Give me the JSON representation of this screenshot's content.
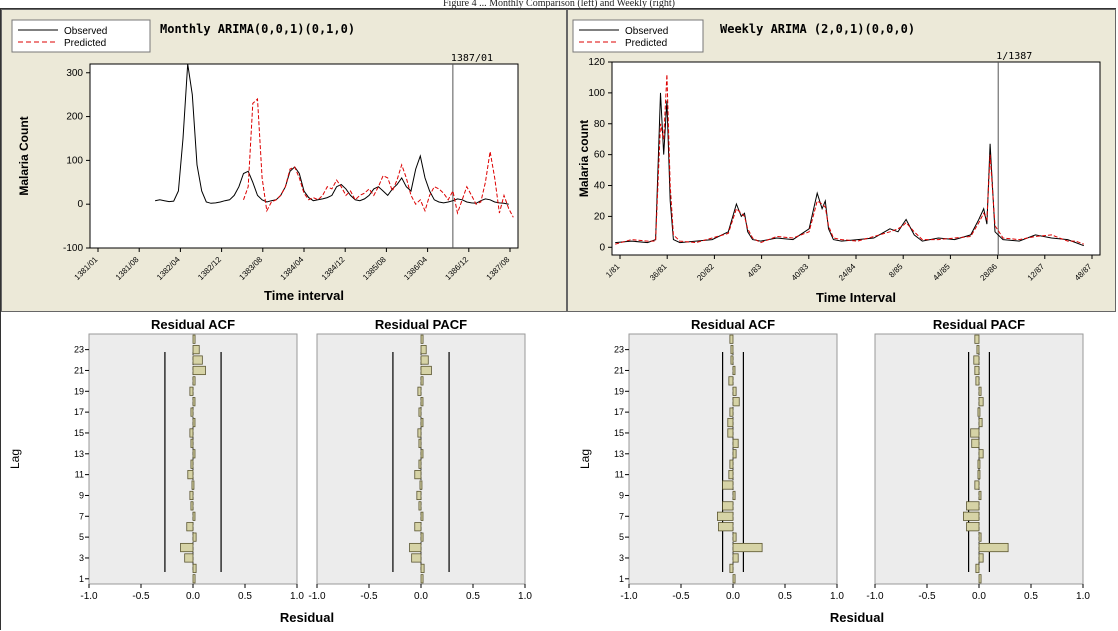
{
  "caption": "Figure 4 ... Monthly Comparison (left) and Weekly (right)",
  "chart_data": [
    {
      "type": "line",
      "title": "Monthly ARIMA(0,0,1)(0,1,0)",
      "xlabel": "Time interval",
      "ylabel": "Malaria Count",
      "ylim": [
        -100,
        320
      ],
      "yticks": [
        -100,
        0,
        100,
        200,
        300
      ],
      "xticks": [
        "1381/01",
        "1381/08",
        "1382/04",
        "1382/12",
        "1383/08",
        "1384/04",
        "1384/12",
        "1385/08",
        "1386/04",
        "1386/12",
        "1387/08"
      ],
      "vline_label": "1387/01",
      "legend": {
        "placement": "top-left",
        "entries": [
          "Observed",
          "Predicted"
        ]
      },
      "series": [
        {
          "name": "Observed",
          "color": "#000000",
          "x": [
            14,
            15,
            16,
            17,
            18,
            19,
            20,
            21,
            22,
            23,
            24,
            25,
            26,
            27,
            28,
            29,
            30,
            31,
            32,
            33,
            34,
            35,
            36,
            37,
            38,
            39,
            40,
            41,
            42,
            43,
            44,
            45,
            46,
            47,
            48,
            49,
            50,
            51,
            52,
            53,
            54,
            55,
            56,
            57,
            58,
            59,
            60,
            61,
            62,
            63,
            64,
            65,
            66,
            67,
            68,
            69,
            70,
            71,
            72,
            73,
            74,
            75,
            76,
            77,
            78,
            79,
            80,
            81,
            82,
            83,
            84,
            85,
            86,
            87,
            88,
            89,
            90
          ],
          "values": [
            8,
            10,
            8,
            6,
            7,
            30,
            150,
            320,
            250,
            90,
            30,
            5,
            2,
            3,
            5,
            8,
            10,
            20,
            40,
            70,
            75,
            50,
            20,
            10,
            5,
            8,
            10,
            20,
            40,
            75,
            85,
            70,
            30,
            15,
            8,
            10,
            12,
            15,
            20,
            40,
            45,
            35,
            20,
            10,
            8,
            12,
            20,
            35,
            40,
            30,
            20,
            35,
            45,
            60,
            40,
            30,
            80,
            110,
            60,
            30,
            10,
            5,
            3,
            5,
            8,
            12,
            10,
            5,
            3,
            2,
            8,
            12,
            10,
            5,
            3,
            2,
            0
          ]
        },
        {
          "name": "Predicted",
          "color": "#dd0000",
          "x": [
            33,
            34,
            35,
            36,
            37,
            38,
            39,
            40,
            41,
            42,
            43,
            44,
            45,
            46,
            47,
            48,
            49,
            50,
            51,
            52,
            53,
            54,
            55,
            56,
            57,
            58,
            59,
            60,
            61,
            62,
            63,
            64,
            65,
            66,
            67,
            68,
            69,
            70,
            71,
            72,
            73,
            74,
            75,
            76,
            77,
            78,
            79,
            80,
            81,
            82,
            83,
            84,
            85,
            86,
            87,
            88,
            89,
            90,
            91
          ],
          "values": [
            10,
            40,
            230,
            240,
            60,
            -15,
            5,
            10,
            20,
            40,
            80,
            85,
            60,
            25,
            10,
            15,
            10,
            20,
            40,
            35,
            55,
            40,
            20,
            30,
            10,
            20,
            25,
            35,
            20,
            40,
            65,
            60,
            30,
            55,
            90,
            60,
            20,
            0,
            10,
            -15,
            20,
            40,
            35,
            25,
            10,
            30,
            -20,
            10,
            40,
            20,
            0,
            5,
            50,
            120,
            60,
            -20,
            20,
            -10,
            -30
          ]
        }
      ]
    },
    {
      "type": "line",
      "title": "Weekly ARIMA (2,0,1)(0,0,0)",
      "xlabel": "Time Interval",
      "ylabel": "Malaria count",
      "ylim": [
        -5,
        120
      ],
      "yticks": [
        0,
        20,
        40,
        60,
        80,
        100,
        120
      ],
      "xticks": [
        "1/81",
        "36/81",
        "20/82",
        "4/83",
        "40/83",
        "24/84",
        "8/85",
        "44/85",
        "28/86",
        "12/87",
        "48/87"
      ],
      "vline_label": "1/1387",
      "legend": {
        "placement": "top-left",
        "entries": [
          "Observed",
          "Predicted"
        ]
      },
      "series": [
        {
          "name": "Observed",
          "color": "#000000",
          "x": [
            0,
            10,
            20,
            25,
            28,
            30,
            32,
            34,
            36,
            40,
            50,
            60,
            70,
            75,
            78,
            80,
            82,
            85,
            90,
            100,
            110,
            120,
            125,
            128,
            130,
            132,
            135,
            140,
            150,
            160,
            170,
            175,
            178,
            180,
            185,
            190,
            200,
            210,
            220,
            225,
            228,
            230,
            232,
            235,
            240,
            250,
            260,
            270,
            280,
            285,
            290
          ],
          "values": [
            3,
            4,
            3,
            5,
            100,
            60,
            95,
            30,
            5,
            3,
            4,
            5,
            10,
            28,
            20,
            22,
            10,
            5,
            4,
            6,
            5,
            12,
            35,
            25,
            30,
            12,
            5,
            4,
            5,
            6,
            12,
            10,
            15,
            18,
            8,
            4,
            6,
            5,
            8,
            18,
            25,
            15,
            67,
            10,
            5,
            4,
            8,
            6,
            5,
            3,
            1
          ]
        },
        {
          "name": "Predicted",
          "color": "#dd0000",
          "x": [
            0,
            10,
            20,
            25,
            28,
            30,
            32,
            34,
            36,
            40,
            50,
            60,
            70,
            75,
            78,
            80,
            82,
            85,
            90,
            100,
            110,
            120,
            125,
            128,
            130,
            132,
            135,
            140,
            150,
            160,
            170,
            175,
            178,
            180,
            185,
            190,
            200,
            210,
            220,
            225,
            228,
            230,
            232,
            235,
            240,
            250,
            260,
            270,
            280,
            285,
            290
          ],
          "values": [
            2,
            5,
            4,
            4,
            80,
            70,
            112,
            40,
            8,
            4,
            3,
            6,
            9,
            25,
            22,
            20,
            12,
            6,
            3,
            7,
            6,
            10,
            30,
            28,
            26,
            14,
            6,
            5,
            4,
            7,
            10,
            12,
            14,
            16,
            10,
            5,
            5,
            6,
            7,
            16,
            22,
            18,
            60,
            14,
            6,
            5,
            7,
            8,
            4,
            4,
            2
          ]
        }
      ]
    },
    {
      "type": "bar",
      "title": "Residual ACF",
      "xlabel": "Residual",
      "ylabel": "Lag",
      "xlim": [
        -1.0,
        1.0
      ],
      "xticks": [
        -1.0,
        -0.5,
        0.0,
        0.5,
        1.0
      ],
      "yticks": [
        1,
        3,
        5,
        7,
        9,
        11,
        13,
        15,
        17,
        19,
        21,
        23
      ],
      "ci": 0.27,
      "lags": [
        1,
        2,
        3,
        4,
        5,
        6,
        7,
        8,
        9,
        10,
        11,
        12,
        13,
        14,
        15,
        16,
        17,
        18,
        19,
        20,
        21,
        22,
        23,
        24
      ],
      "values": [
        0.02,
        0.03,
        -0.08,
        -0.12,
        0.03,
        -0.06,
        0.01,
        -0.02,
        -0.03,
        -0.01,
        -0.05,
        -0.02,
        0.01,
        -0.02,
        -0.03,
        0.01,
        -0.02,
        0.01,
        -0.03,
        0.02,
        0.12,
        0.09,
        0.06,
        0.02
      ]
    },
    {
      "type": "bar",
      "title": "Residual PACF",
      "xlabel": "",
      "ylabel": "",
      "xlim": [
        -1.0,
        1.0
      ],
      "xticks": [
        -1.0,
        -0.5,
        0.0,
        0.5,
        1.0
      ],
      "ci": 0.27,
      "lags": [
        1,
        2,
        3,
        4,
        5,
        6,
        7,
        8,
        9,
        10,
        11,
        12,
        13,
        14,
        15,
        16,
        17,
        18,
        19,
        20,
        21,
        22,
        23,
        24
      ],
      "values": [
        0.02,
        0.03,
        -0.09,
        -0.11,
        0.02,
        -0.06,
        0.01,
        -0.02,
        -0.04,
        -0.01,
        -0.06,
        -0.02,
        0.01,
        -0.02,
        -0.03,
        0.01,
        -0.02,
        0.01,
        -0.03,
        0.02,
        0.1,
        0.07,
        0.05,
        0.02
      ]
    },
    {
      "type": "bar",
      "title": "Residual ACF",
      "xlabel": "Residual",
      "ylabel": "Lag",
      "xlim": [
        -1.0,
        1.0
      ],
      "xticks": [
        -1.0,
        -0.5,
        0.0,
        0.5,
        1.0
      ],
      "yticks": [
        1,
        3,
        5,
        7,
        9,
        11,
        13,
        15,
        17,
        19,
        21,
        23
      ],
      "ci": 0.1,
      "lags": [
        1,
        2,
        3,
        4,
        5,
        6,
        7,
        8,
        9,
        10,
        11,
        12,
        13,
        14,
        15,
        16,
        17,
        18,
        19,
        20,
        21,
        22,
        23,
        24
      ],
      "values": [
        0.02,
        -0.03,
        0.05,
        0.28,
        0.03,
        -0.14,
        -0.15,
        -0.1,
        0.02,
        -0.1,
        -0.04,
        -0.03,
        0.03,
        0.05,
        -0.05,
        -0.05,
        -0.03,
        0.06,
        0.03,
        -0.04,
        0.01,
        -0.02,
        -0.02,
        -0.03
      ]
    },
    {
      "type": "bar",
      "title": "Residual PACF",
      "xlabel": "",
      "ylabel": "",
      "xlim": [
        -1.0,
        1.0
      ],
      "xticks": [
        -1.0,
        -0.5,
        0.0,
        0.5,
        1.0
      ],
      "ci": 0.1,
      "lags": [
        1,
        2,
        3,
        4,
        5,
        6,
        7,
        8,
        9,
        10,
        11,
        12,
        13,
        14,
        15,
        16,
        17,
        18,
        19,
        20,
        21,
        22,
        23,
        24
      ],
      "values": [
        0.02,
        -0.03,
        0.04,
        0.28,
        0.02,
        -0.12,
        -0.15,
        -0.12,
        0.01,
        -0.04,
        -0.01,
        -0.01,
        0.04,
        -0.07,
        -0.08,
        0.03,
        -0.01,
        0.04,
        0.02,
        -0.03,
        -0.04,
        -0.05,
        -0.02,
        -0.04
      ]
    }
  ]
}
